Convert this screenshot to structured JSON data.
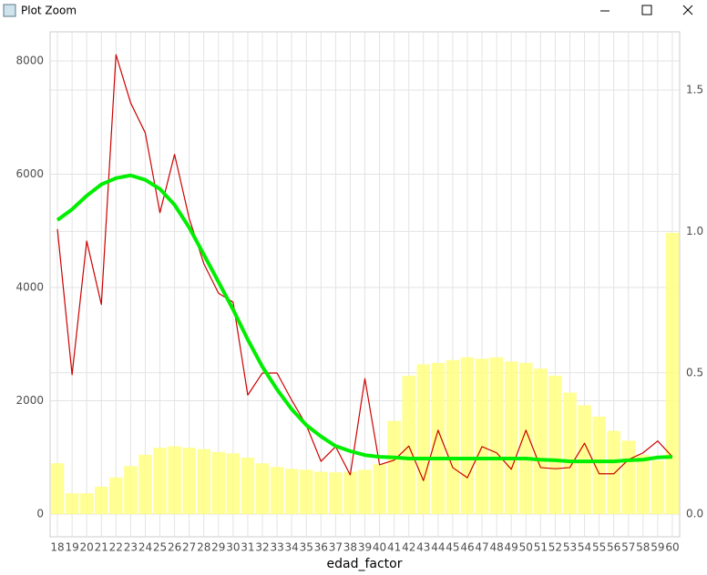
{
  "window": {
    "title": "Plot Zoom"
  },
  "chart_data": {
    "type": "combo",
    "x_label": "edad_factor",
    "categories": [
      "18",
      "19",
      "20",
      "21",
      "22",
      "23",
      "24",
      "25",
      "26",
      "27",
      "28",
      "29",
      "30",
      "31",
      "32",
      "33",
      "34",
      "35",
      "36",
      "37",
      "38",
      "39",
      "40",
      "41",
      "42",
      "43",
      "44",
      "45",
      "46",
      "47",
      "48",
      "49",
      "50",
      "51",
      "52",
      "53",
      "54",
      "55",
      "56",
      "57",
      "58",
      "59",
      "60"
    ],
    "series": [
      {
        "type": "bar",
        "axis": "y2",
        "color": "#ffff80",
        "values": [
          0.18,
          0.074,
          0.074,
          0.097,
          0.13,
          0.17,
          0.21,
          0.235,
          0.24,
          0.235,
          0.23,
          0.22,
          0.215,
          0.2,
          0.18,
          0.167,
          0.16,
          0.157,
          0.15,
          0.148,
          0.15,
          0.157,
          0.177,
          0.33,
          0.49,
          0.53,
          0.535,
          0.545,
          0.555,
          0.55,
          0.555,
          0.54,
          0.535,
          0.515,
          0.49,
          0.43,
          0.385,
          0.345,
          0.295,
          0.26,
          0.21,
          0.19,
          0.995
        ]
      },
      {
        "type": "line",
        "color": "#cc0000",
        "values": [
          5030,
          2460,
          4820,
          3700,
          8110,
          7260,
          6730,
          5320,
          6350,
          5220,
          4420,
          3900,
          3740,
          2100,
          2490,
          2490,
          2010,
          1570,
          930,
          1190,
          690,
          2390,
          870,
          950,
          1200,
          590,
          1480,
          820,
          640,
          1190,
          1080,
          790,
          1480,
          820,
          800,
          820,
          1250,
          710,
          710,
          960,
          1080,
          1290,
          1010
        ]
      },
      {
        "type": "line",
        "color": "#00ee00",
        "values": [
          5190,
          5380,
          5620,
          5820,
          5930,
          5980,
          5900,
          5740,
          5460,
          5060,
          4580,
          4100,
          3610,
          3080,
          2600,
          2200,
          1850,
          1570,
          1370,
          1200,
          1110,
          1040,
          1010,
          1000,
          980,
          980,
          980,
          980,
          980,
          980,
          980,
          980,
          980,
          960,
          950,
          930,
          930,
          930,
          930,
          950,
          960,
          1000,
          1010
        ]
      }
    ],
    "ylim": [
      -402,
      8514
    ],
    "yticks": [
      0,
      2000,
      4000,
      6000,
      8000
    ],
    "y2lim": [
      -0.08,
      1.706
    ],
    "y2ticks": [
      {
        "value": 0,
        "label": "0.0"
      },
      {
        "value": 0.5,
        "label": "0.5"
      },
      {
        "value": 1,
        "label": "1.0"
      },
      {
        "value": 1.5,
        "label": "1.5"
      }
    ],
    "grid": true
  }
}
